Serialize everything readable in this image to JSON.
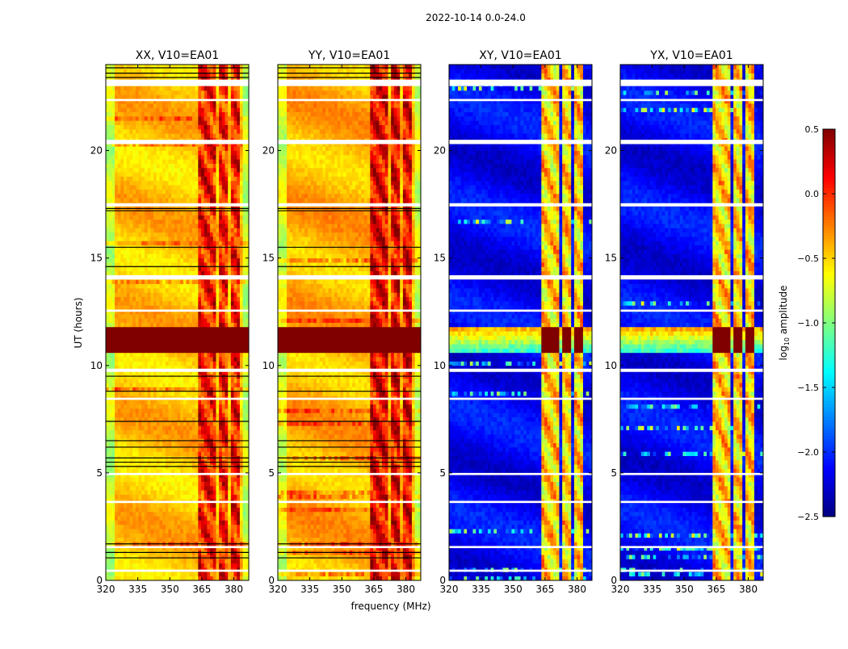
{
  "chart_data": {
    "type": "heatmap",
    "title": "2022-10-14 0.0-24.0",
    "xlabel": "frequency (MHz)",
    "ylabel": "UT (hours)",
    "xlim": [
      320,
      387
    ],
    "ylim": [
      0,
      24
    ],
    "xticks": [
      320,
      335,
      350,
      365,
      380
    ],
    "yticks": [
      0,
      5,
      10,
      15,
      20
    ],
    "colorbar": {
      "label_main": "log",
      "label_sub": "10",
      "label_rest": " amplitude",
      "range": [
        -2.5,
        0.5
      ],
      "ticks": [
        "0.5",
        "0.0",
        "−0.5",
        "−1.0",
        "−1.5",
        "−2.0",
        "−2.5"
      ],
      "tick_values": [
        0.5,
        0.0,
        -0.5,
        -1.0,
        -1.5,
        -2.0,
        -2.5
      ],
      "colormap": "jet"
    },
    "rfi_bands_mhz": [
      [
        362.6,
        367.2
      ],
      [
        368.0,
        372.0
      ],
      [
        372.9,
        377.9
      ],
      [
        378.5,
        383.0
      ]
    ],
    "storm_hours": [
      10.7,
      11.8
    ],
    "flagged_hours": [
      [
        23.0,
        23.3
      ],
      [
        22.3,
        22.4
      ],
      [
        20.3,
        20.5
      ],
      [
        17.4,
        17.55
      ],
      [
        14.0,
        14.2
      ],
      [
        12.5,
        12.6
      ],
      [
        9.7,
        9.85
      ],
      [
        8.4,
        8.5
      ],
      [
        4.9,
        5.0
      ],
      [
        3.6,
        3.7
      ],
      [
        0.4,
        0.5
      ],
      [
        1.5,
        1.6
      ]
    ],
    "black_line_hours": [
      23.85,
      23.6,
      23.4,
      17.3,
      17.2,
      15.5,
      14.6,
      9.5,
      8.8,
      7.4,
      6.5,
      6.2,
      5.7,
      5.5,
      5.3,
      1.7,
      1.3,
      1.05
    ],
    "panels": [
      {
        "title": "XX, V10=EA01",
        "base": -0.45,
        "band_level": 0.05,
        "storm_level": 0.5,
        "storm_full_width": true
      },
      {
        "title": "YY, V10=EA01",
        "base": -0.4,
        "band_level": 0.15,
        "storm_level": 0.5,
        "storm_full_width": true
      },
      {
        "title": "XY, V10=EA01",
        "base": -2.15,
        "band_level": -0.5,
        "storm_level": 0.5,
        "storm_full_width": false
      },
      {
        "title": "YX, V10=EA01",
        "base": -2.15,
        "band_level": -0.5,
        "storm_level": 0.5,
        "storm_full_width": false
      }
    ]
  }
}
